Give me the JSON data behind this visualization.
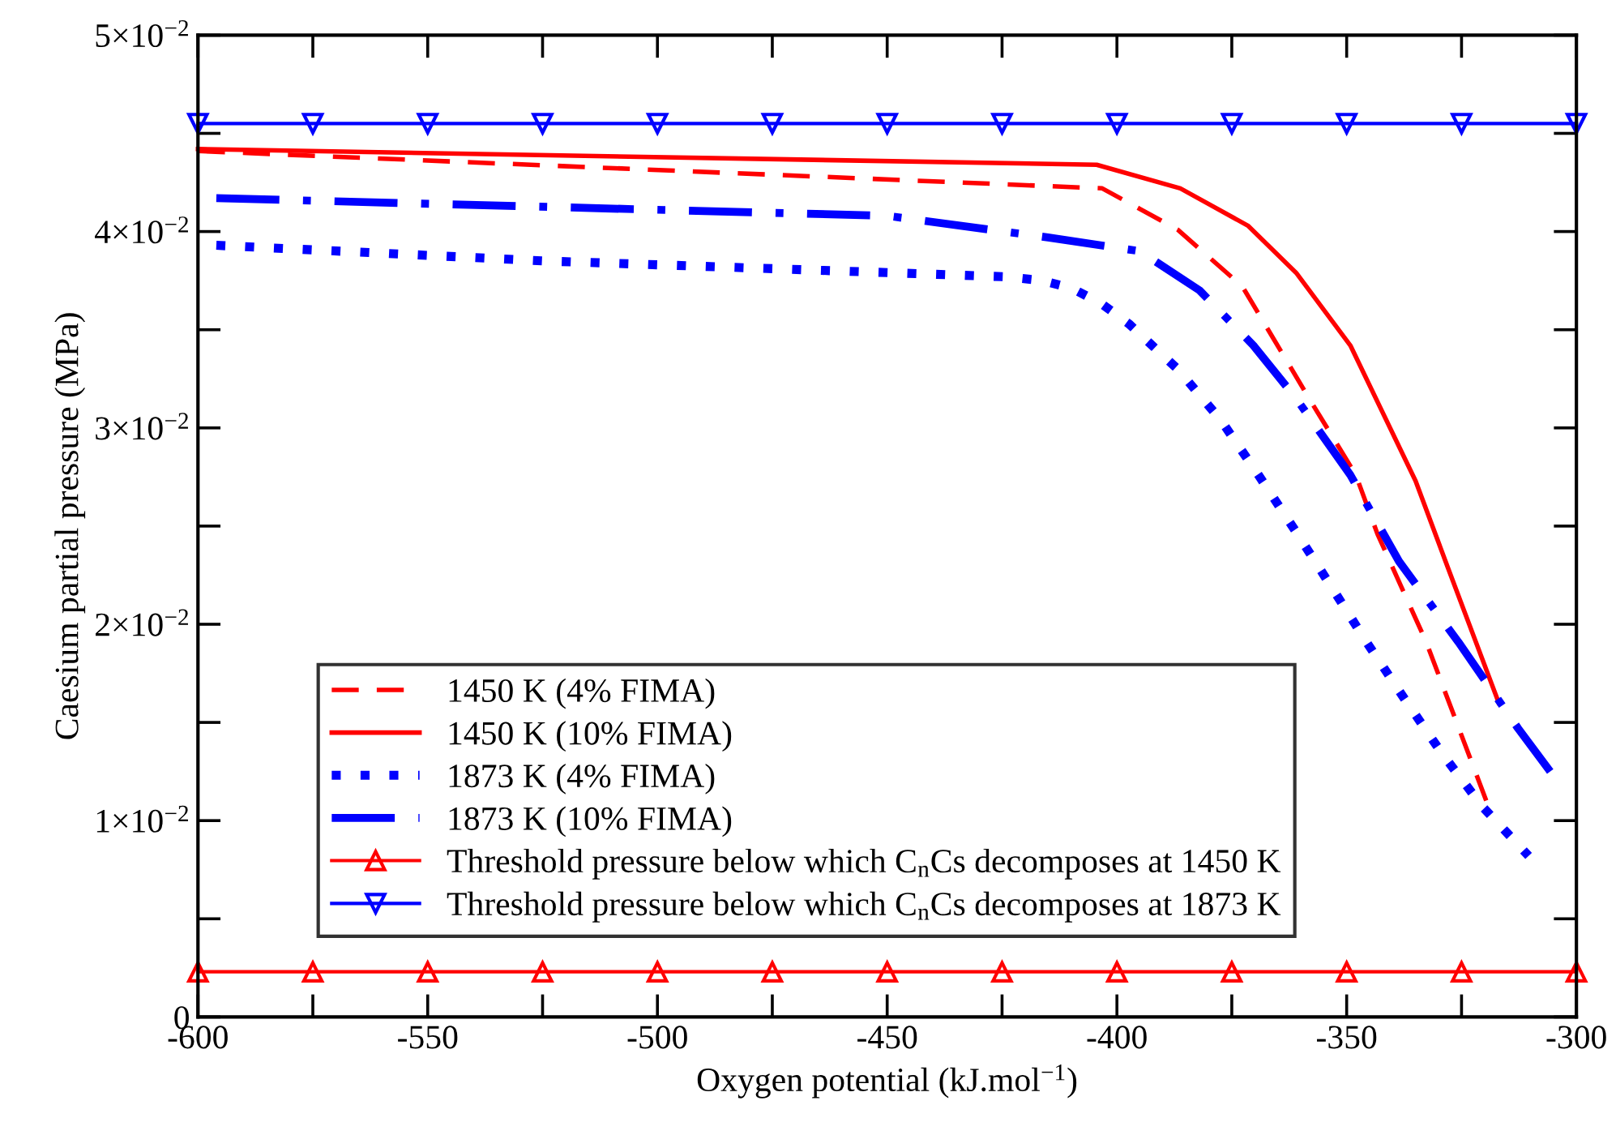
{
  "chart_data": {
    "type": "line",
    "xlabel": "Oxygen potential (kJ.mol$^{−1}$)",
    "ylabel": "Caesium partial pressure (MPa)",
    "xlim": [
      -600,
      -300
    ],
    "ylim": [
      0,
      0.05
    ],
    "xticks": [
      -600,
      {
        "value": -575,
        "label": null
      },
      -550,
      {
        "value": -525,
        "label": null
      },
      -500,
      {
        "value": -475,
        "label": null
      },
      -450,
      {
        "value": -425,
        "label": null
      },
      -400,
      {
        "value": -375,
        "label": null
      },
      -350,
      {
        "value": -325,
        "label": null
      },
      -300
    ],
    "yticks": [
      {
        "value": 0,
        "label": "0"
      },
      {
        "value": 0.005,
        "label": null
      },
      {
        "value": 0.01,
        "label": "1×10$^{−2}$"
      },
      {
        "value": 0.015,
        "label": null
      },
      {
        "value": 0.02,
        "label": "2×10$^{−2}$"
      },
      {
        "value": 0.025,
        "label": null
      },
      {
        "value": 0.03,
        "label": "3×10$^{−2}$"
      },
      {
        "value": 0.035,
        "label": null
      },
      {
        "value": 0.04,
        "label": "4×10$^{−2}$"
      },
      {
        "value": 0.045,
        "label": null
      },
      {
        "value": 0.05,
        "label": "5×10$^{−2}$"
      }
    ],
    "grid": false,
    "legend": "lower left",
    "series": [
      {
        "name": "1450 K (4% FIMA)",
        "color": "#ff0000",
        "line_style": "dashed",
        "marker": "none",
        "x": [
          -600,
          -403.2,
          -386.8,
          -372.7,
          -357.4,
          -348,
          -343.3,
          -332.7,
          -319.6
        ],
        "values": [
          0.0441,
          0.0422,
          0.0401,
          0.0372,
          0.0312,
          0.0276,
          0.0246,
          0.0191,
          0.011
        ]
      },
      {
        "name": "1450 K (10% FIMA)",
        "color": "#ff0000",
        "line_style": "solid",
        "marker": "none",
        "x": [
          -600,
          -404.4,
          -386.2,
          -371.5,
          -361,
          -349.2,
          -335,
          -328,
          -316.9
        ],
        "values": [
          0.0442,
          0.0434,
          0.0422,
          0.0403,
          0.0379,
          0.0342,
          0.0273,
          0.0229,
          0.016
        ]
      },
      {
        "name": "1873 K (4% FIMA)",
        "color": "#0000ff",
        "line_style": "dotted",
        "marker": "none",
        "x": [
          -596,
          -524.3,
          -473.8,
          -424.4,
          -416.2,
          -409.7,
          -403.2,
          -397.4,
          -386.8,
          -377.4,
          -369.2,
          -361,
          -353.3,
          -345.7,
          -337.4,
          -329.2,
          -320.4,
          -310.4
        ],
        "values": [
          0.0393,
          0.0385,
          0.0381,
          0.0377,
          0.0375,
          0.0371,
          0.0363,
          0.0353,
          0.033,
          0.0304,
          0.0276,
          0.0247,
          0.0219,
          0.0191,
          0.0162,
          0.0134,
          0.0107,
          0.0082
        ]
      },
      {
        "name": "1873 K (10% FIMA)",
        "color": "#0000ff",
        "line_style": "dashdot",
        "marker": "none",
        "x": [
          -596,
          -450,
          -415,
          -395,
          -382,
          -370.3,
          -361,
          -349.2,
          -338.6,
          -325.7,
          -312.7,
          -305.7
        ],
        "values": [
          0.0417,
          0.0408,
          0.0397,
          0.039,
          0.037,
          0.0342,
          0.0315,
          0.0276,
          0.0232,
          0.0191,
          0.0147,
          0.0125
        ]
      },
      {
        "name": "Threshold pressure below which C$_{n}$Cs decomposes at 1450 K",
        "color": "#ff0000",
        "line_style": "solid",
        "marker": "triangle",
        "x": [
          -600,
          -575,
          -550,
          -525,
          -500,
          -475,
          -450,
          -425,
          -400,
          -375,
          -350,
          -325,
          -300
        ],
        "values": [
          0.0023,
          0.0023,
          0.0023,
          0.0023,
          0.0023,
          0.0023,
          0.0023,
          0.0023,
          0.0023,
          0.0023,
          0.0023,
          0.0023,
          0.0023
        ]
      },
      {
        "name": "Threshold pressure below which C$_{n}$Cs decomposes at 1873 K",
        "color": "#0000ff",
        "line_style": "solid",
        "marker": "triangle_down",
        "x": [
          -600,
          -575,
          -550,
          -525,
          -500,
          -475,
          -450,
          -425,
          -400,
          -375,
          -350,
          -325,
          -300
        ],
        "values": [
          0.0455,
          0.0455,
          0.0455,
          0.0455,
          0.0455,
          0.0455,
          0.0455,
          0.0455,
          0.0455,
          0.0455,
          0.0455,
          0.0455,
          0.0455
        ]
      }
    ]
  }
}
